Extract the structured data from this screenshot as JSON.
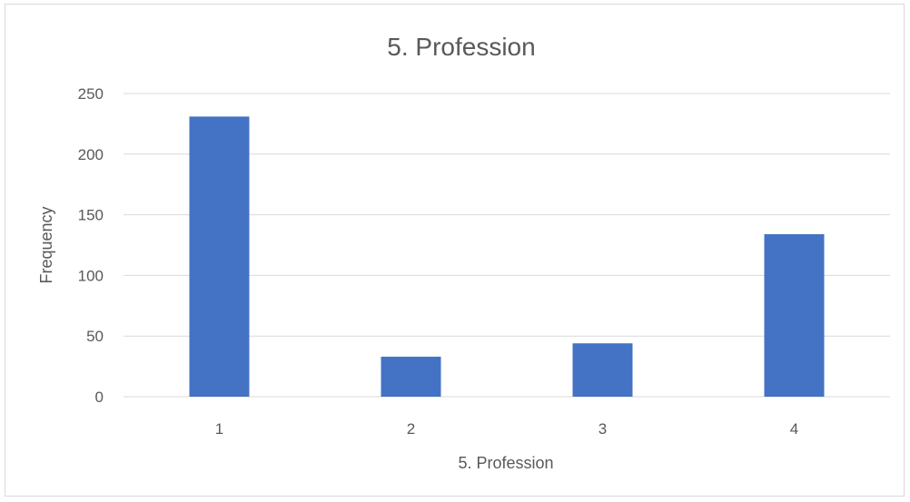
{
  "chart_data": {
    "type": "bar",
    "title": "5. Profession",
    "xlabel": "5. Profession",
    "ylabel": "Frequency",
    "categories": [
      "1",
      "2",
      "3",
      "4"
    ],
    "values": [
      231,
      33,
      44,
      134
    ],
    "ylim": [
      0,
      250
    ],
    "yticks": [
      0,
      50,
      100,
      150,
      200,
      250
    ],
    "grid": true,
    "legend": "none",
    "bar_color": "#4472C4"
  }
}
